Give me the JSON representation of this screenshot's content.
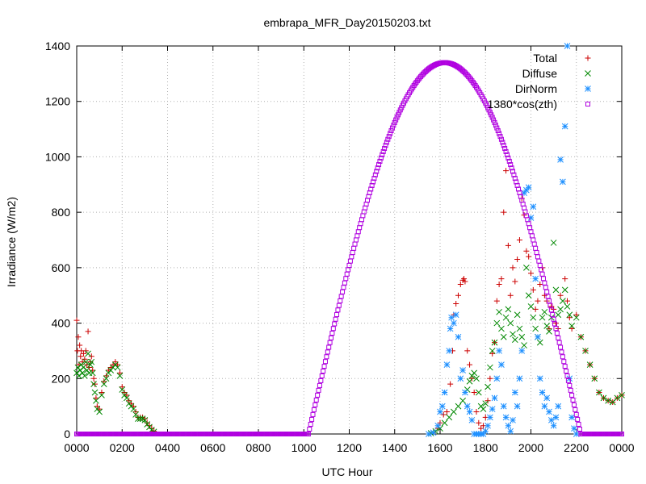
{
  "chart_data": {
    "type": "scatter",
    "title": "embrapa_MFR_Day20150203.txt",
    "xlabel": "UTC Hour",
    "ylabel": "Irradiance (W/m2)",
    "x_ticks": [
      "0000",
      "0200",
      "0400",
      "0600",
      "0800",
      "1000",
      "1200",
      "1400",
      "1600",
      "1800",
      "2000",
      "2200",
      "0000"
    ],
    "x_range_hours": [
      0,
      24
    ],
    "ylim": [
      0,
      1400
    ],
    "y_ticks": [
      0,
      200,
      400,
      600,
      800,
      1000,
      1200,
      1400
    ],
    "grid": true,
    "legend_position": "top-right",
    "series": [
      {
        "name": "Total",
        "marker": "+",
        "color": "#cc0000",
        "points": [
          [
            0.0,
            410
          ],
          [
            0.03,
            300
          ],
          [
            0.07,
            350
          ],
          [
            0.1,
            250
          ],
          [
            0.13,
            320
          ],
          [
            0.17,
            280
          ],
          [
            0.2,
            300
          ],
          [
            0.25,
            260
          ],
          [
            0.3,
            290
          ],
          [
            0.35,
            270
          ],
          [
            0.4,
            300
          ],
          [
            0.45,
            250
          ],
          [
            0.5,
            370
          ],
          [
            0.55,
            240
          ],
          [
            0.6,
            260
          ],
          [
            0.65,
            280
          ],
          [
            0.7,
            230
          ],
          [
            0.75,
            200
          ],
          [
            0.8,
            180
          ],
          [
            0.85,
            130
          ],
          [
            0.9,
            100
          ],
          [
            1.0,
            90
          ],
          [
            1.1,
            150
          ],
          [
            1.2,
            190
          ],
          [
            1.3,
            210
          ],
          [
            1.4,
            230
          ],
          [
            1.5,
            240
          ],
          [
            1.6,
            250
          ],
          [
            1.7,
            260
          ],
          [
            1.8,
            250
          ],
          [
            1.9,
            220
          ],
          [
            2.0,
            170
          ],
          [
            2.1,
            150
          ],
          [
            2.2,
            140
          ],
          [
            2.3,
            120
          ],
          [
            2.4,
            110
          ],
          [
            2.5,
            100
          ],
          [
            2.6,
            80
          ],
          [
            2.7,
            60
          ],
          [
            2.8,
            60
          ],
          [
            2.9,
            60
          ],
          [
            3.0,
            55
          ],
          [
            3.1,
            40
          ],
          [
            3.2,
            30
          ],
          [
            3.3,
            20
          ],
          [
            3.4,
            10
          ],
          [
            15.7,
            5
          ],
          [
            15.9,
            20
          ],
          [
            16.0,
            40
          ],
          [
            16.15,
            70
          ],
          [
            16.3,
            80
          ],
          [
            16.45,
            180
          ],
          [
            16.55,
            300
          ],
          [
            16.6,
            430
          ],
          [
            16.7,
            470
          ],
          [
            16.8,
            500
          ],
          [
            16.9,
            540
          ],
          [
            17.0,
            555
          ],
          [
            17.05,
            560
          ],
          [
            17.1,
            550
          ],
          [
            17.2,
            300
          ],
          [
            17.3,
            250
          ],
          [
            17.4,
            200
          ],
          [
            17.5,
            150
          ],
          [
            17.6,
            80
          ],
          [
            17.7,
            40
          ],
          [
            17.8,
            20
          ],
          [
            17.9,
            30
          ],
          [
            18.0,
            60
          ],
          [
            18.1,
            120
          ],
          [
            18.2,
            200
          ],
          [
            18.3,
            290
          ],
          [
            18.4,
            330
          ],
          [
            18.5,
            480
          ],
          [
            18.6,
            540
          ],
          [
            18.7,
            560
          ],
          [
            18.8,
            800
          ],
          [
            18.9,
            950
          ],
          [
            19.0,
            680
          ],
          [
            19.1,
            500
          ],
          [
            19.2,
            600
          ],
          [
            19.3,
            550
          ],
          [
            19.4,
            630
          ],
          [
            19.5,
            700
          ],
          [
            19.6,
            850
          ],
          [
            19.7,
            790
          ],
          [
            19.8,
            660
          ],
          [
            19.9,
            640
          ],
          [
            20.0,
            580
          ],
          [
            20.1,
            520
          ],
          [
            20.2,
            450
          ],
          [
            20.3,
            480
          ],
          [
            20.4,
            540
          ],
          [
            20.5,
            600
          ],
          [
            20.6,
            500
          ],
          [
            20.7,
            480
          ],
          [
            20.8,
            380
          ],
          [
            20.9,
            460
          ],
          [
            21.0,
            450
          ],
          [
            21.1,
            400
          ],
          [
            21.2,
            380
          ],
          [
            21.3,
            500
          ],
          [
            21.5,
            560
          ],
          [
            21.6,
            480
          ],
          [
            21.7,
            420
          ],
          [
            21.8,
            380
          ],
          [
            22.0,
            430
          ],
          [
            22.2,
            350
          ],
          [
            22.4,
            300
          ],
          [
            22.6,
            250
          ],
          [
            22.8,
            200
          ],
          [
            23.0,
            150
          ],
          [
            23.2,
            130
          ],
          [
            23.4,
            120
          ],
          [
            23.6,
            115
          ],
          [
            23.8,
            130
          ],
          [
            24.0,
            140
          ]
        ]
      },
      {
        "name": "Diffuse",
        "marker": "x",
        "color": "#008800",
        "points": [
          [
            0.0,
            220
          ],
          [
            0.05,
            240
          ],
          [
            0.1,
            210
          ],
          [
            0.15,
            230
          ],
          [
            0.2,
            250
          ],
          [
            0.25,
            220
          ],
          [
            0.3,
            240
          ],
          [
            0.35,
            210
          ],
          [
            0.4,
            260
          ],
          [
            0.45,
            230
          ],
          [
            0.5,
            290
          ],
          [
            0.55,
            220
          ],
          [
            0.6,
            250
          ],
          [
            0.65,
            260
          ],
          [
            0.7,
            220
          ],
          [
            0.75,
            180
          ],
          [
            0.8,
            150
          ],
          [
            0.85,
            120
          ],
          [
            0.9,
            90
          ],
          [
            1.0,
            80
          ],
          [
            1.1,
            140
          ],
          [
            1.2,
            180
          ],
          [
            1.3,
            200
          ],
          [
            1.4,
            220
          ],
          [
            1.5,
            230
          ],
          [
            1.6,
            240
          ],
          [
            1.7,
            250
          ],
          [
            1.8,
            240
          ],
          [
            1.9,
            210
          ],
          [
            2.0,
            160
          ],
          [
            2.1,
            140
          ],
          [
            2.2,
            130
          ],
          [
            2.3,
            110
          ],
          [
            2.4,
            100
          ],
          [
            2.5,
            90
          ],
          [
            2.6,
            70
          ],
          [
            2.7,
            55
          ],
          [
            2.8,
            55
          ],
          [
            2.9,
            55
          ],
          [
            3.0,
            50
          ],
          [
            3.1,
            35
          ],
          [
            3.2,
            25
          ],
          [
            3.3,
            15
          ],
          [
            3.4,
            8
          ],
          [
            15.6,
            3
          ],
          [
            15.8,
            10
          ],
          [
            16.0,
            20
          ],
          [
            16.2,
            40
          ],
          [
            16.4,
            60
          ],
          [
            16.6,
            80
          ],
          [
            16.8,
            100
          ],
          [
            17.0,
            120
          ],
          [
            17.2,
            160
          ],
          [
            17.3,
            190
          ],
          [
            17.4,
            210
          ],
          [
            17.5,
            220
          ],
          [
            17.6,
            200
          ],
          [
            17.7,
            150
          ],
          [
            17.8,
            100
          ],
          [
            17.9,
            90
          ],
          [
            18.0,
            110
          ],
          [
            18.1,
            170
          ],
          [
            18.2,
            240
          ],
          [
            18.3,
            300
          ],
          [
            18.4,
            330
          ],
          [
            18.5,
            400
          ],
          [
            18.6,
            440
          ],
          [
            18.7,
            380
          ],
          [
            18.8,
            350
          ],
          [
            18.9,
            420
          ],
          [
            19.0,
            450
          ],
          [
            19.1,
            400
          ],
          [
            19.2,
            360
          ],
          [
            19.3,
            340
          ],
          [
            19.4,
            430
          ],
          [
            19.5,
            380
          ],
          [
            19.6,
            350
          ],
          [
            19.7,
            320
          ],
          [
            19.8,
            600
          ],
          [
            19.9,
            500
          ],
          [
            20.0,
            460
          ],
          [
            20.1,
            420
          ],
          [
            20.2,
            380
          ],
          [
            20.3,
            350
          ],
          [
            20.4,
            330
          ],
          [
            20.5,
            420
          ],
          [
            20.6,
            440
          ],
          [
            20.7,
            390
          ],
          [
            20.8,
            370
          ],
          [
            20.9,
            420
          ],
          [
            21.0,
            690
          ],
          [
            21.1,
            520
          ],
          [
            21.2,
            430
          ],
          [
            21.3,
            450
          ],
          [
            21.4,
            480
          ],
          [
            21.5,
            520
          ],
          [
            21.6,
            460
          ],
          [
            21.7,
            430
          ],
          [
            21.8,
            390
          ],
          [
            22.0,
            420
          ],
          [
            22.2,
            350
          ],
          [
            22.4,
            300
          ],
          [
            22.6,
            250
          ],
          [
            22.8,
            200
          ],
          [
            23.0,
            150
          ],
          [
            23.2,
            130
          ],
          [
            23.4,
            120
          ],
          [
            23.6,
            115
          ],
          [
            23.8,
            130
          ],
          [
            24.0,
            140
          ]
        ]
      },
      {
        "name": "DirNorm",
        "marker": "*",
        "color": "#1e90ff",
        "points": [
          [
            15.5,
            0
          ],
          [
            15.7,
            5
          ],
          [
            15.9,
            30
          ],
          [
            16.0,
            80
          ],
          [
            16.1,
            100
          ],
          [
            16.2,
            150
          ],
          [
            16.3,
            250
          ],
          [
            16.4,
            300
          ],
          [
            16.45,
            380
          ],
          [
            16.5,
            420
          ],
          [
            16.6,
            400
          ],
          [
            16.7,
            430
          ],
          [
            16.8,
            350
          ],
          [
            16.9,
            200
          ],
          [
            17.0,
            230
          ],
          [
            17.1,
            150
          ],
          [
            17.2,
            100
          ],
          [
            17.3,
            80
          ],
          [
            17.4,
            50
          ],
          [
            17.5,
            0
          ],
          [
            17.6,
            0
          ],
          [
            17.7,
            0
          ],
          [
            17.8,
            0
          ],
          [
            17.9,
            0
          ],
          [
            18.0,
            10
          ],
          [
            18.1,
            30
          ],
          [
            18.2,
            60
          ],
          [
            18.3,
            90
          ],
          [
            18.4,
            130
          ],
          [
            18.5,
            200
          ],
          [
            18.6,
            300
          ],
          [
            18.7,
            250
          ],
          [
            18.8,
            100
          ],
          [
            18.9,
            60
          ],
          [
            19.0,
            30
          ],
          [
            19.1,
            10
          ],
          [
            19.2,
            50
          ],
          [
            19.3,
            150
          ],
          [
            19.4,
            100
          ],
          [
            19.5,
            200
          ],
          [
            19.6,
            300
          ],
          [
            19.7,
            870
          ],
          [
            19.8,
            880
          ],
          [
            19.9,
            890
          ],
          [
            20.0,
            780
          ],
          [
            20.1,
            820
          ],
          [
            20.2,
            560
          ],
          [
            20.3,
            350
          ],
          [
            20.4,
            200
          ],
          [
            20.5,
            150
          ],
          [
            20.6,
            100
          ],
          [
            20.7,
            130
          ],
          [
            20.8,
            80
          ],
          [
            20.9,
            50
          ],
          [
            21.0,
            30
          ],
          [
            21.1,
            60
          ],
          [
            21.2,
            100
          ],
          [
            21.3,
            990
          ],
          [
            21.4,
            910
          ],
          [
            21.5,
            1110
          ],
          [
            21.6,
            1400
          ],
          [
            21.7,
            200
          ],
          [
            21.8,
            60
          ],
          [
            21.9,
            20
          ],
          [
            22.0,
            0
          ]
        ]
      },
      {
        "name": "1380*cos(zth)",
        "marker": "square",
        "color": "#b000e0",
        "curve": {
          "peak_hour": 16.2,
          "peak_value": 1340,
          "rise_hour": 10.2,
          "set_hour": 22.2
        }
      }
    ]
  }
}
